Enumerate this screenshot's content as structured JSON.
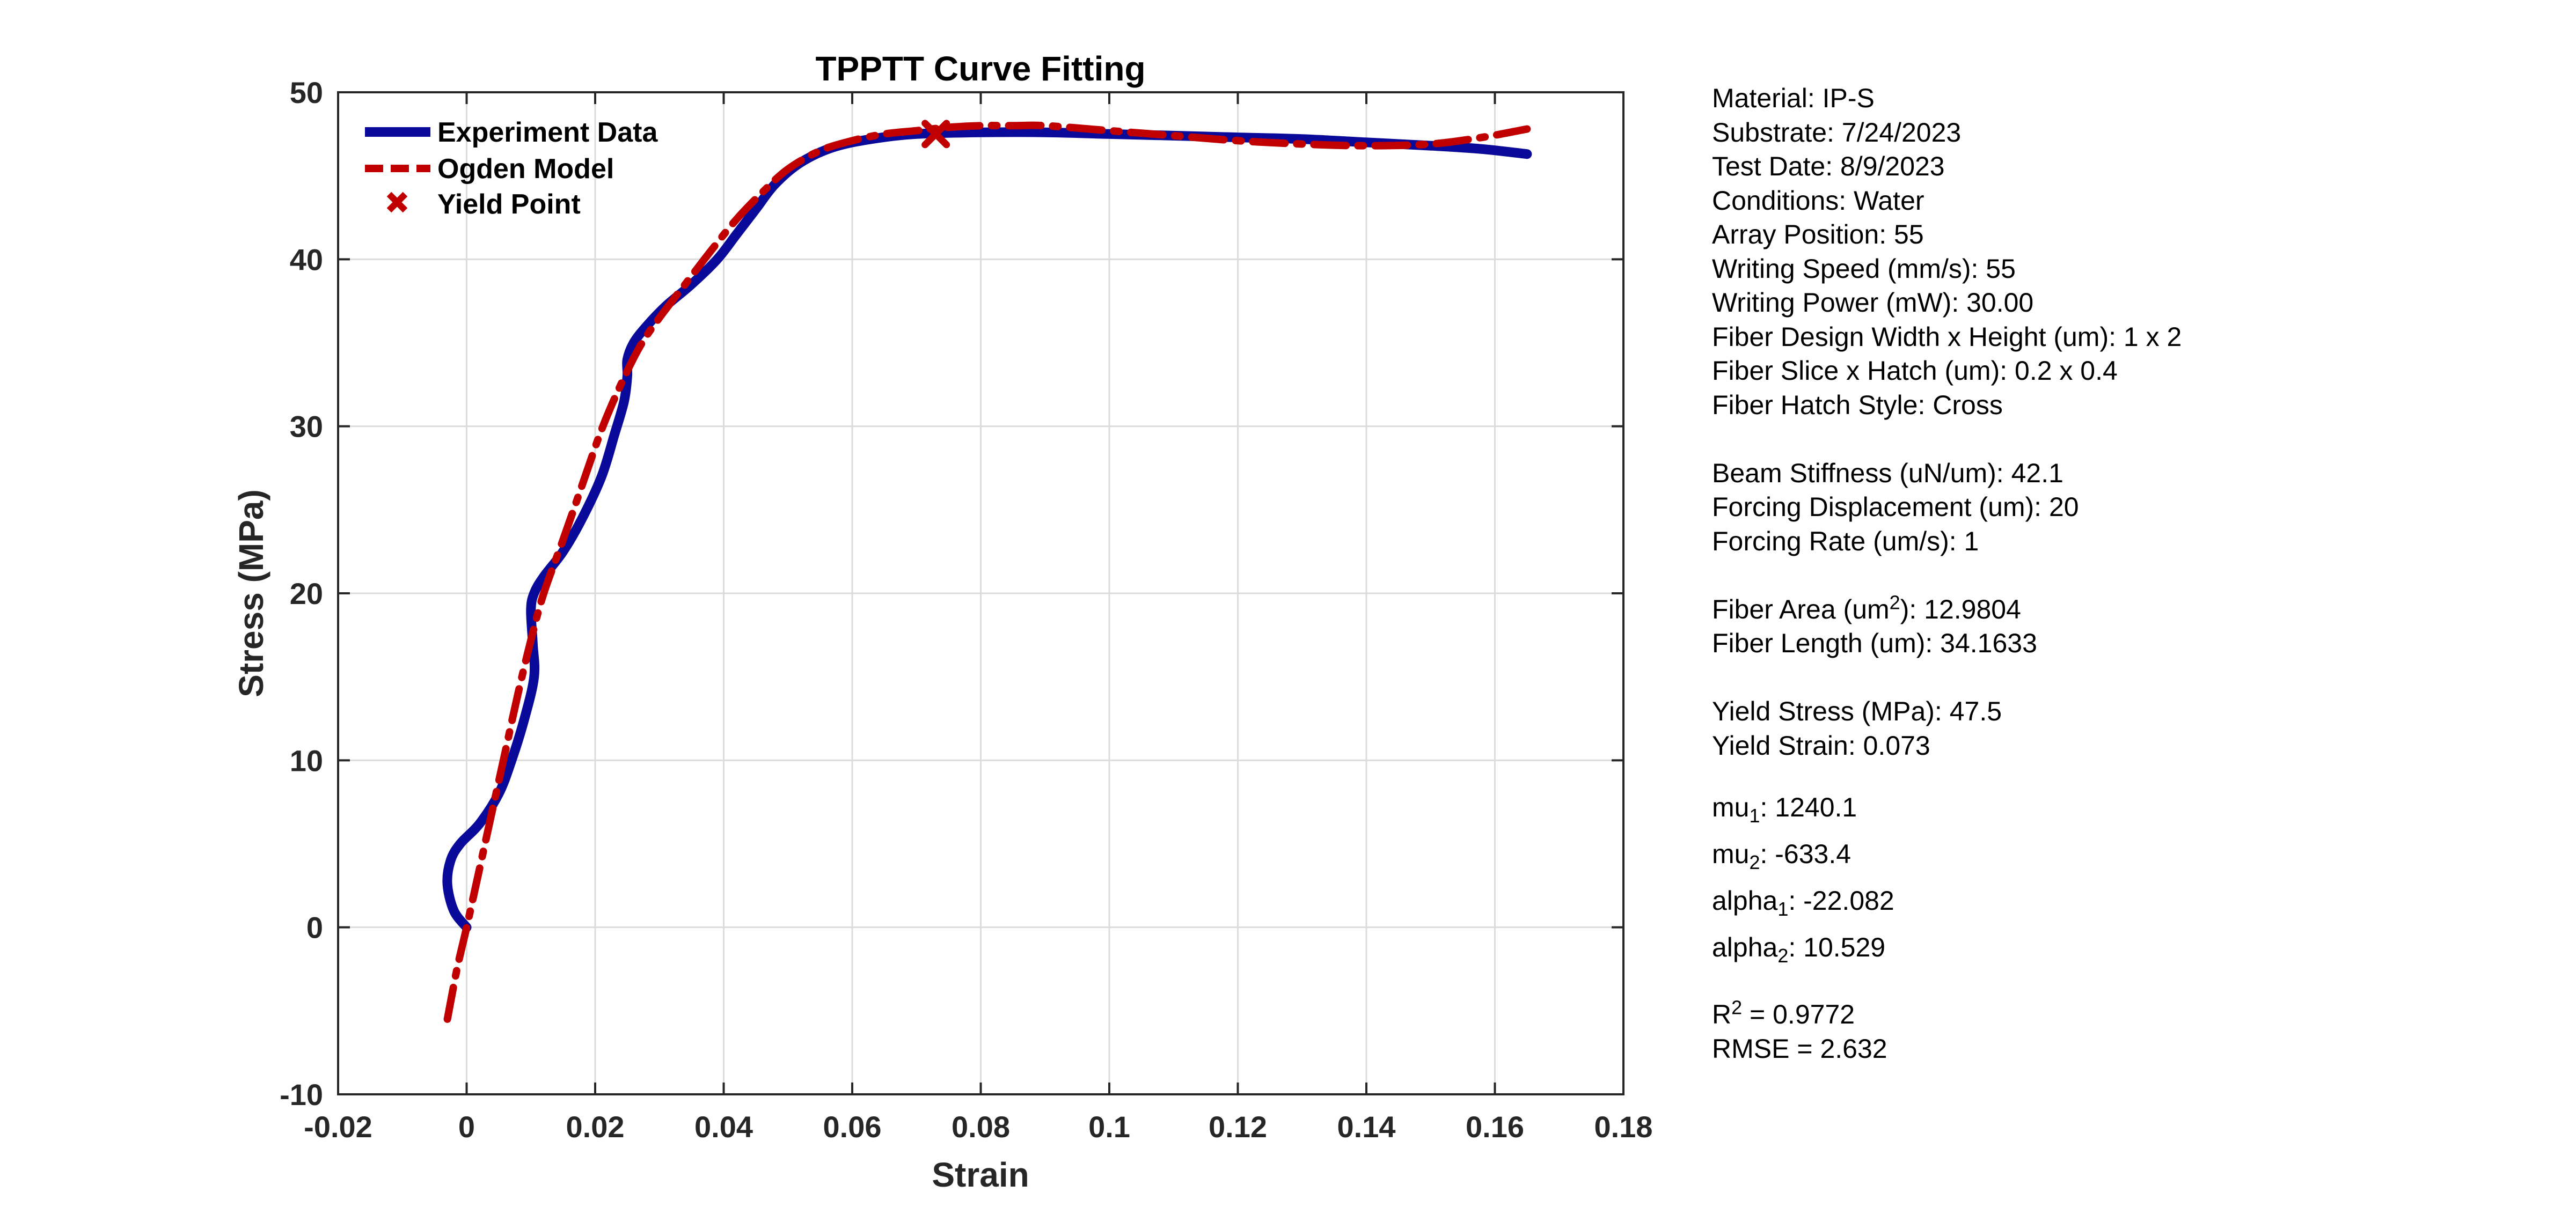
{
  "chart_data": {
    "type": "line",
    "title": "TPPTT Curve Fitting",
    "xlabel": "Strain",
    "ylabel": "Stress (MPa)",
    "xlim": [
      -0.02,
      0.18
    ],
    "ylim": [
      -10,
      50
    ],
    "xticks": [
      -0.02,
      0,
      0.02,
      0.04,
      0.06,
      0.08,
      0.1,
      0.12,
      0.14,
      0.16,
      0.18
    ],
    "xtick_labels": [
      "-0.02",
      "0",
      "0.02",
      "0.04",
      "0.06",
      "0.08",
      "0.1",
      "0.12",
      "0.14",
      "0.16",
      "0.18"
    ],
    "yticks": [
      -10,
      0,
      10,
      20,
      30,
      40,
      50
    ],
    "ytick_labels": [
      "-10",
      "0",
      "10",
      "20",
      "30",
      "40",
      "50"
    ],
    "grid": true,
    "legend_position": "top-left",
    "series": [
      {
        "name": "Experiment Data",
        "style": "solid",
        "color": "#0a0a9a",
        "x": [
          0.0,
          -0.002,
          -0.003,
          -0.0025,
          -0.001,
          0.002,
          0.005,
          0.007,
          0.009,
          0.0105,
          0.0103,
          0.01,
          0.0105,
          0.012,
          0.015,
          0.018,
          0.021,
          0.023,
          0.0245,
          0.025,
          0.025,
          0.026,
          0.028,
          0.031,
          0.035,
          0.039,
          0.042,
          0.045,
          0.048,
          0.052,
          0.057,
          0.063,
          0.07,
          0.08,
          0.09,
          0.1,
          0.11,
          0.12,
          0.13,
          0.14,
          0.15,
          0.158,
          0.165
        ],
        "y": [
          0.0,
          1.0,
          2.6,
          4.0,
          5.0,
          6.2,
          8.0,
          10.0,
          12.5,
          15.0,
          17.0,
          19.0,
          20.0,
          21.0,
          22.5,
          24.5,
          27.0,
          29.5,
          31.5,
          33.0,
          34.0,
          35.0,
          36.0,
          37.2,
          38.5,
          40.0,
          41.5,
          43.0,
          44.5,
          45.8,
          46.7,
          47.2,
          47.5,
          47.6,
          47.6,
          47.5,
          47.4,
          47.3,
          47.2,
          47.0,
          46.8,
          46.6,
          46.3
        ]
      },
      {
        "name": "Ogden Model",
        "style": "dashed",
        "color": "#c00000",
        "x": [
          -0.003,
          -0.0015,
          0.0,
          0.002,
          0.004,
          0.006,
          0.008,
          0.01,
          0.012,
          0.015,
          0.018,
          0.021,
          0.024,
          0.027,
          0.03,
          0.034,
          0.038,
          0.042,
          0.046,
          0.05,
          0.055,
          0.06,
          0.065,
          0.07,
          0.075,
          0.08,
          0.085,
          0.09,
          0.1,
          0.11,
          0.12,
          0.13,
          0.14,
          0.15,
          0.158,
          0.165
        ],
        "y": [
          -5.5,
          -2.5,
          0.0,
          3.5,
          7.0,
          10.5,
          14.0,
          17.2,
          20.0,
          23.2,
          26.5,
          29.8,
          32.5,
          34.8,
          36.5,
          38.5,
          40.5,
          42.4,
          44.0,
          45.4,
          46.5,
          47.1,
          47.5,
          47.7,
          47.9,
          48.0,
          48.0,
          48.0,
          47.7,
          47.4,
          47.1,
          46.9,
          46.8,
          46.9,
          47.3,
          47.8
        ]
      }
    ],
    "yield_point": {
      "name": "Yield Point",
      "x": 0.073,
      "y": 47.5,
      "marker": "x",
      "color": "#c00000"
    }
  },
  "info_panel": {
    "material": "Material: IP-S",
    "substrate": "Substrate: 7/24/2023",
    "test_date": "Test Date: 8/9/2023",
    "conditions": "Conditions: Water",
    "array_position": "Array Position: 55",
    "writing_speed": "Writing Speed (mm/s): 55",
    "writing_power": "Writing Power (mW): 30.00",
    "fiber_design": "Fiber Design Width x Height (um): 1 x 2",
    "fiber_slice_hatch": "Fiber Slice x Hatch (um): 0.2 x 0.4",
    "fiber_hatch_style": "Fiber Hatch Style: Cross",
    "beam_stiffness": "Beam Stiffness (uN/um): 42.1",
    "forcing_displacement": "Forcing Displacement (um): 20",
    "forcing_rate": "Forcing Rate (um/s): 1",
    "fiber_area_label": "Fiber Area (um",
    "fiber_area_sup": "2",
    "fiber_area_value": "): 12.9804",
    "fiber_length": "Fiber Length (um): 34.1633",
    "yield_stress": "Yield Stress (MPa): 47.5",
    "yield_strain": "Yield Strain: 0.073",
    "mu1_base": "mu",
    "mu1_sub": "1",
    "mu1_value": ": 1240.1",
    "mu2_base": "mu",
    "mu2_sub": "2",
    "mu2_value": ": -633.4",
    "alpha1_base": "alpha",
    "alpha1_sub": "1",
    "alpha1_value": ": -22.082",
    "alpha2_base": "alpha",
    "alpha2_sub": "2",
    "alpha2_value": ": 10.529",
    "r2_base": "R",
    "r2_sup": "2",
    "r2_value": " = 0.9772",
    "rmse": "RMSE = 2.632"
  }
}
